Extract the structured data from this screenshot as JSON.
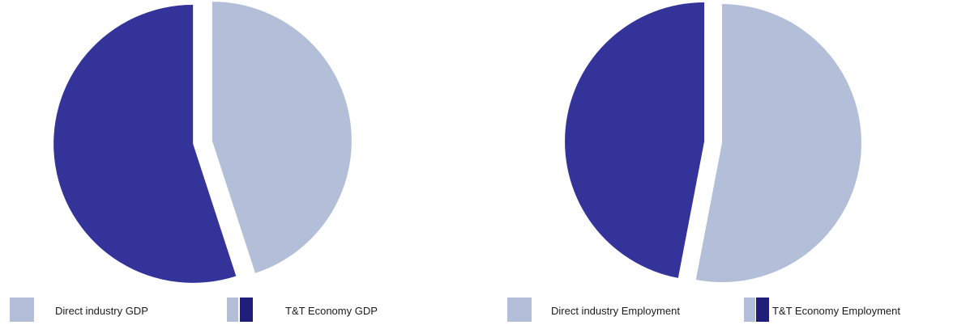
{
  "colors": {
    "direct": "#b3bfd8",
    "economy": "#333399",
    "economy_legend": "#1f1f7a"
  },
  "chart_data": [
    {
      "type": "pie",
      "title": "",
      "slices": [
        {
          "label": "Direct industry GDP",
          "value": 45,
          "color": "#b3bfd8",
          "exploded": true
        },
        {
          "label": "T&T Economy GDP",
          "value": 55,
          "color": "#333399",
          "exploded": true
        }
      ],
      "legend": {
        "placement": "bottom",
        "entries": [
          {
            "label": "Direct industry GDP",
            "swatch": [
              "#b3bfd8"
            ]
          },
          {
            "label": "T&T Economy GDP",
            "swatch": [
              "#b3bfd8",
              "#1f1f7a"
            ]
          }
        ]
      }
    },
    {
      "type": "pie",
      "title": "",
      "slices": [
        {
          "label": "Direct industry Employment",
          "value": 53,
          "color": "#b3bfd8",
          "exploded": true
        },
        {
          "label": "T&T Economy Employment",
          "value": 47,
          "color": "#333399",
          "exploded": true
        }
      ],
      "legend": {
        "placement": "bottom",
        "entries": [
          {
            "label": "Direct industry Employment",
            "swatch": [
              "#b3bfd8"
            ]
          },
          {
            "label": "T&T Economy Employment",
            "swatch": [
              "#b3bfd8",
              "#1f1f7a"
            ]
          }
        ]
      }
    }
  ]
}
